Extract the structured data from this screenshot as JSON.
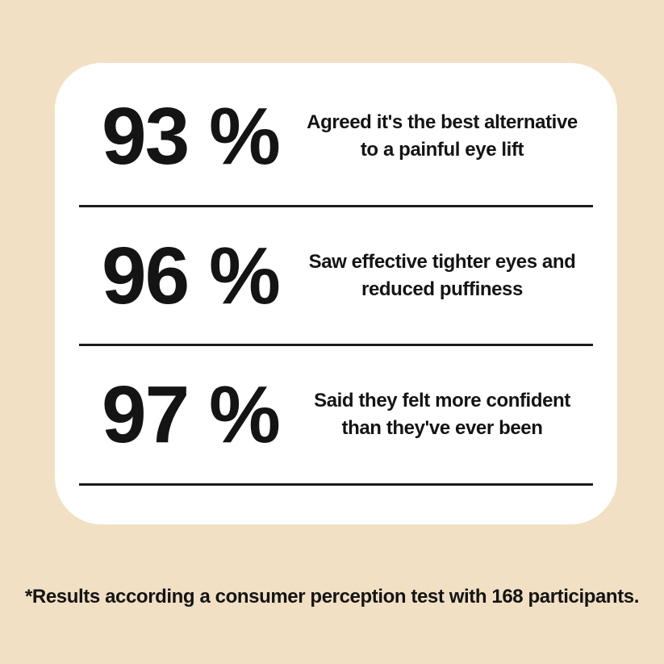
{
  "colors": {
    "background": "#f2e0c4",
    "card": "#ffffff",
    "text": "#141414",
    "divider": "#1c1c1c"
  },
  "stats": [
    {
      "value": "93 %",
      "description_lines": [
        "Agreed it's the best alternative",
        "to a painful eye lift"
      ]
    },
    {
      "value": "96 %",
      "description_lines": [
        "Saw effective tighter eyes and",
        "reduced puffiness"
      ]
    },
    {
      "value": "97 %",
      "description_lines": [
        "Said they felt more confident",
        "than they've ever been"
      ]
    }
  ],
  "footnote": "*Results according a consumer perception test with 168 participants."
}
